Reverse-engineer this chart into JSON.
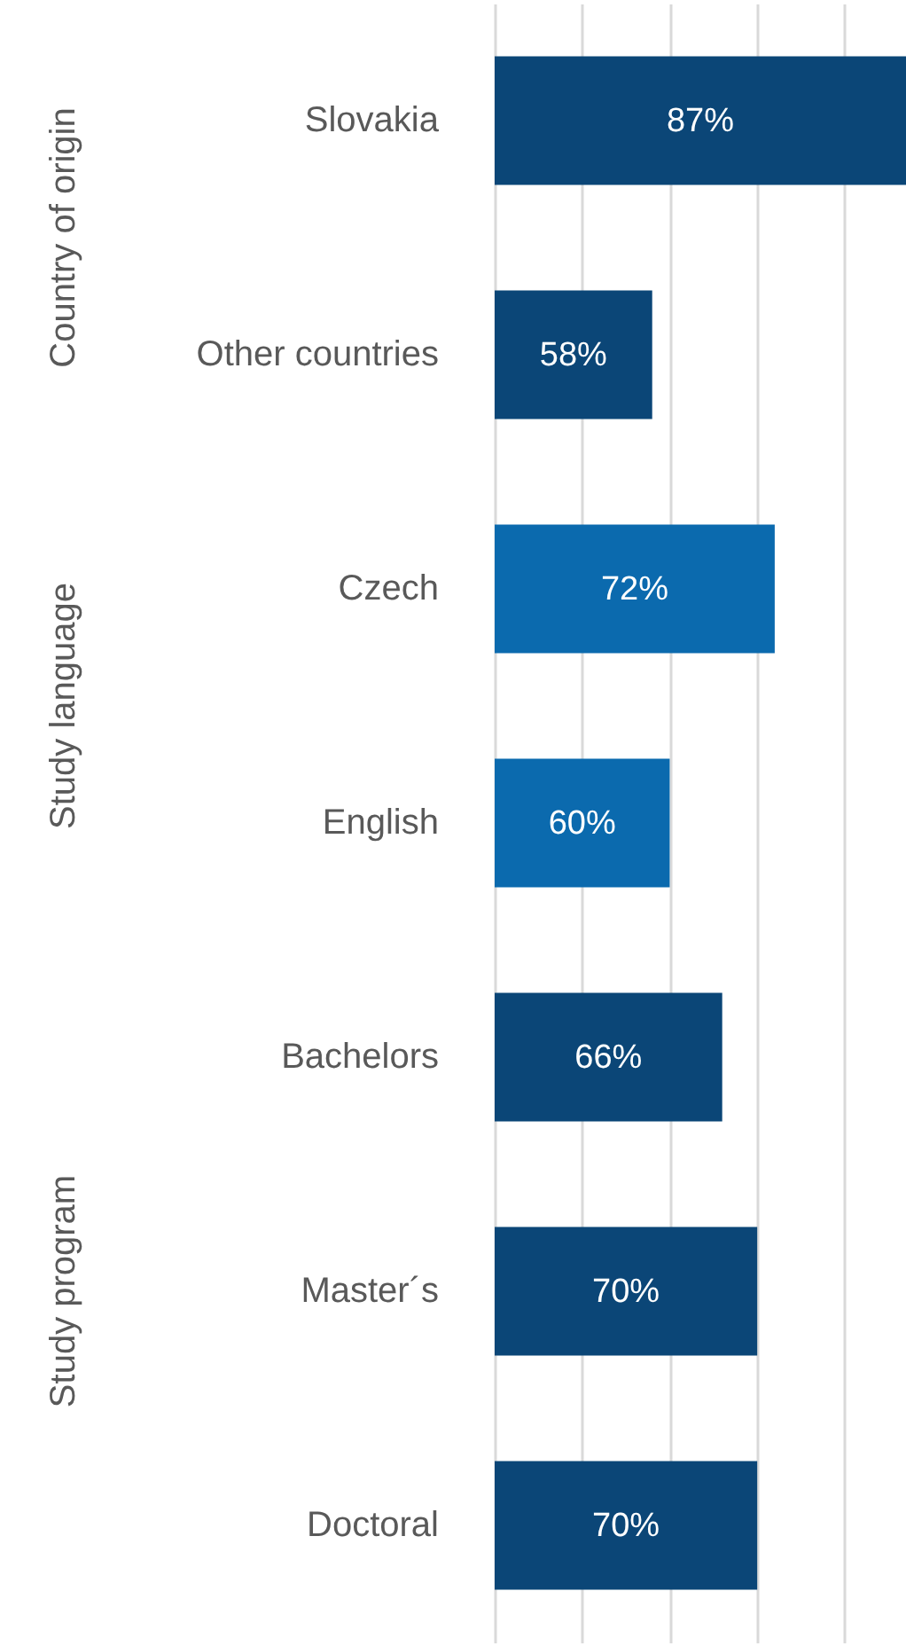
{
  "chart_data": {
    "type": "bar",
    "orientation": "horizontal",
    "categories": [
      "Slovakia",
      "Other countries",
      "Czech",
      "English",
      "Bachelors",
      "Master´s",
      "Doctoral"
    ],
    "values": [
      87,
      58,
      72,
      60,
      66,
      70,
      70
    ],
    "value_labels": [
      "87%",
      "58%",
      "72%",
      "60%",
      "66%",
      "70%",
      "70%"
    ],
    "colors": [
      "#0b4677",
      "#0b4677",
      "#0b6aae",
      "#0b6aae",
      "#0b4677",
      "#0b4677",
      "#0b4677"
    ],
    "xlim": [
      40,
      87
    ],
    "grid": "x",
    "tick_labels": "y",
    "annotations": [
      "Country of origin",
      "Study language",
      "Study program"
    ]
  }
}
